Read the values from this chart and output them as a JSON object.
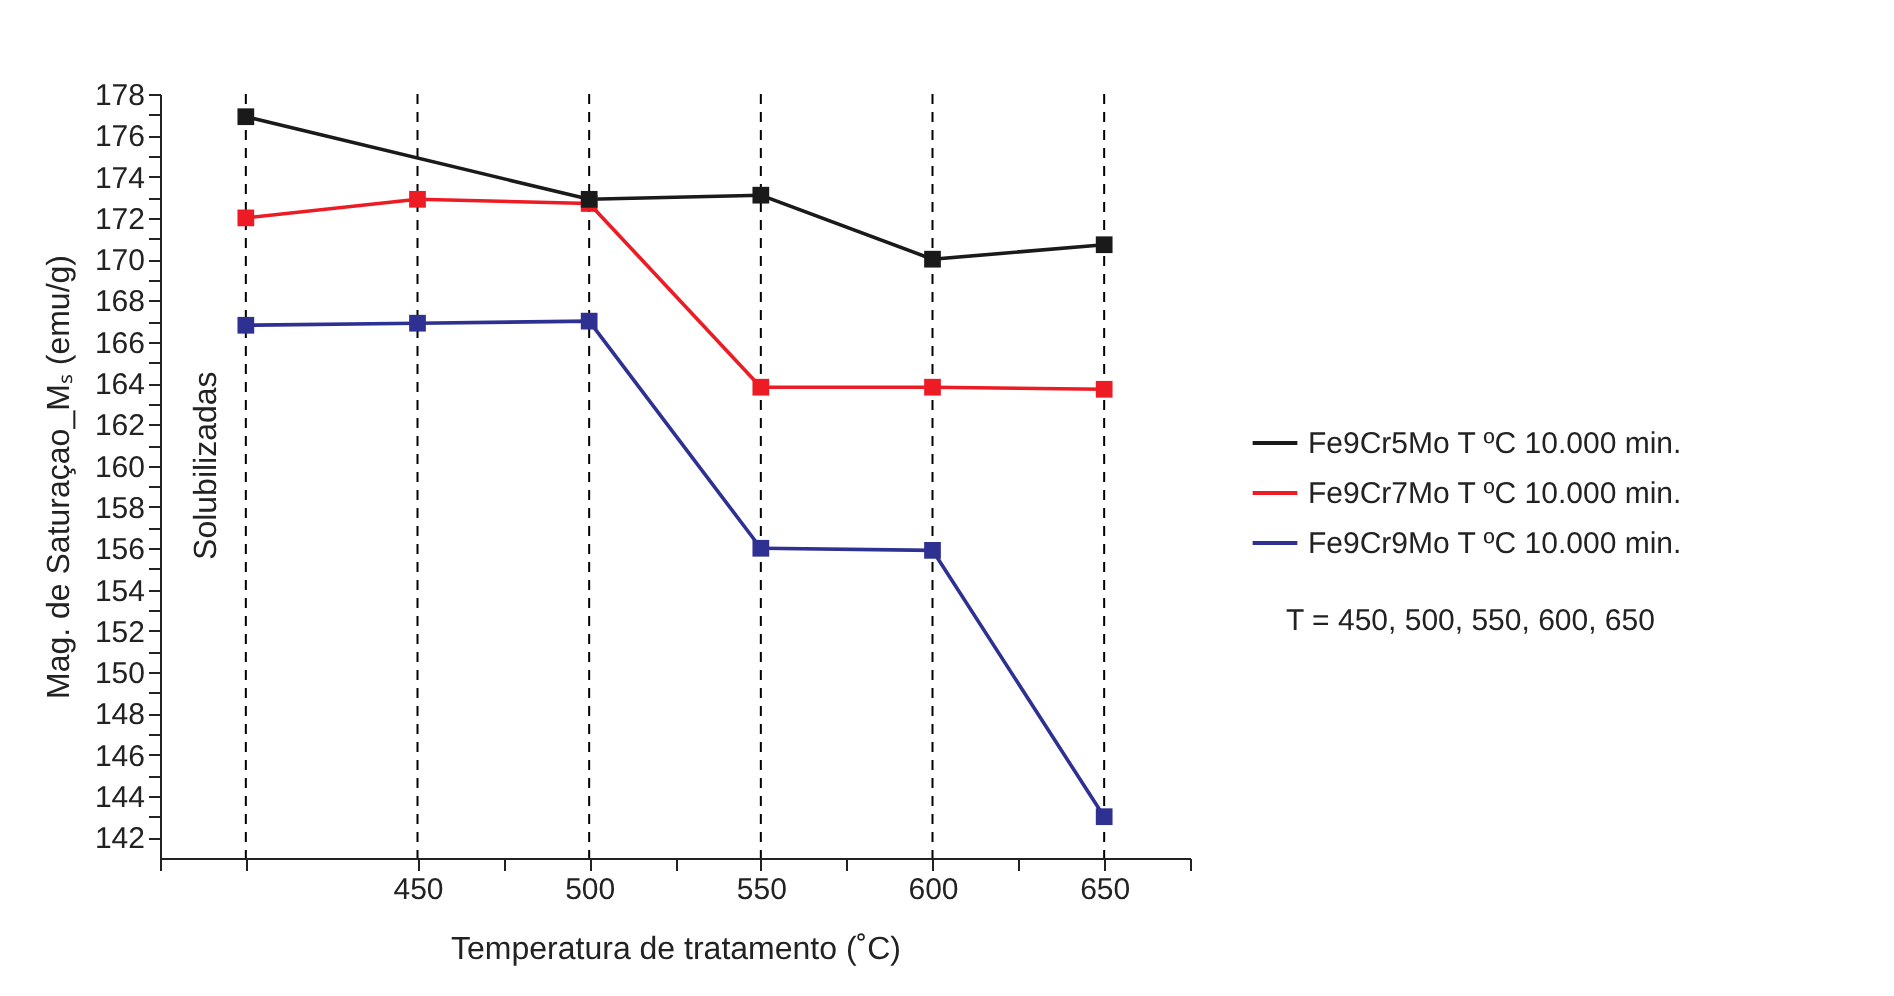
{
  "chart_data": {
    "type": "line",
    "xlabel": "Temperatura de tratamento (˚C)",
    "ylabel": "Mag. de Saturaçao_Mₛ (emu/g)",
    "xlim": [
      375,
      675
    ],
    "xticks": [
      {
        "value": 375,
        "label": null
      },
      {
        "value": 400,
        "label": null
      },
      450,
      {
        "value": 475,
        "label": null
      },
      500,
      {
        "value": 525,
        "label": null
      },
      550,
      {
        "value": 575,
        "label": null
      },
      600,
      {
        "value": 625,
        "label": null
      },
      650,
      {
        "value": 675,
        "label": null
      }
    ],
    "ylim": [
      141,
      178
    ],
    "yticks": [
      142,
      {
        "value": 143,
        "label": null
      },
      144,
      {
        "value": 145,
        "label": null
      },
      146,
      {
        "value": 147,
        "label": null
      },
      148,
      {
        "value": 149,
        "label": null
      },
      150,
      {
        "value": 151,
        "label": null
      },
      152,
      {
        "value": 153,
        "label": null
      },
      154,
      {
        "value": 155,
        "label": null
      },
      156,
      {
        "value": 157,
        "label": null
      },
      158,
      {
        "value": 159,
        "label": null
      },
      160,
      {
        "value": 161,
        "label": null
      },
      162,
      {
        "value": 163,
        "label": null
      },
      164,
      {
        "value": 165,
        "label": null
      },
      166,
      {
        "value": 167,
        "label": null
      },
      168,
      {
        "value": 169,
        "label": null
      },
      170,
      {
        "value": 171,
        "label": null
      },
      172,
      {
        "value": 173,
        "label": null
      },
      174,
      {
        "value": 175,
        "label": null
      },
      176,
      {
        "value": 177,
        "label": null
      },
      178
    ],
    "series": [
      {
        "name": "Fe9Cr5Mo T ºC 10.000 min.",
        "color": "#1a1a1a",
        "x": [
          400,
          500,
          550,
          600,
          650
        ],
        "values": [
          176.9,
          172.9,
          173.1,
          170.0,
          170.7
        ]
      },
      {
        "name": "Fe9Cr7Mo T ºC 10.000 min.",
        "color": "#ed1c24",
        "x": [
          400,
          450,
          500,
          550,
          600,
          650
        ],
        "values": [
          172.0,
          172.9,
          172.7,
          163.8,
          163.8,
          163.7
        ]
      },
      {
        "name": "Fe9Cr9Mo T ºC 10.000 min.",
        "color": "#2e3192",
        "x": [
          400,
          450,
          500,
          550,
          600,
          650
        ],
        "values": [
          166.8,
          166.9,
          167.0,
          156.0,
          155.9,
          143.0
        ]
      }
    ],
    "ref_lines": [
      {
        "axis": "x",
        "value": 400,
        "color": "#000000",
        "line_style": "dashed"
      },
      {
        "axis": "x",
        "value": 450,
        "color": "#000000",
        "line_style": "dashed"
      },
      {
        "axis": "x",
        "value": 500,
        "color": "#000000",
        "line_style": "dashed"
      },
      {
        "axis": "x",
        "value": 550,
        "color": "#000000",
        "line_style": "dashed"
      },
      {
        "axis": "x",
        "value": 600,
        "color": "#000000",
        "line_style": "dashed"
      },
      {
        "axis": "x",
        "value": 650,
        "color": "#000000",
        "line_style": "dashed"
      }
    ],
    "annotations": [
      {
        "text": "Solubilizadas",
        "x": 400,
        "y": 160
      },
      "T = 450, 500, 550, 600, 650"
    ],
    "marker": "square",
    "line_style": "solid",
    "grid": false,
    "legend": "right"
  }
}
